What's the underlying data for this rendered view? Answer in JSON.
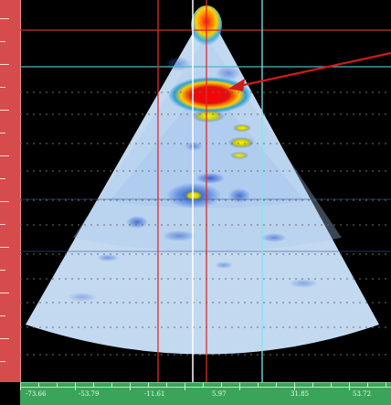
{
  "image": {
    "left_ruler_labels": [
      "",
      "",
      "",
      "",
      "",
      "",
      "",
      ""
    ],
    "bottom_ruler_labels": [
      "-73.66",
      "-53.79",
      "-11.61",
      "5.97",
      "31.85",
      "53.72"
    ]
  },
  "colors": {
    "background": "#000000",
    "scan_base": "#c9ddf2",
    "left_ruler": "#d64b4b",
    "bottom_ruler": "#3aa45a",
    "cursor_red": "#e02a2a",
    "cursor_cyan": "#7fe6ee",
    "cursor_white": "#ffffff",
    "arrow": "#d11a1a"
  },
  "icons": {
    "arrow": "red-arrow-icon"
  }
}
